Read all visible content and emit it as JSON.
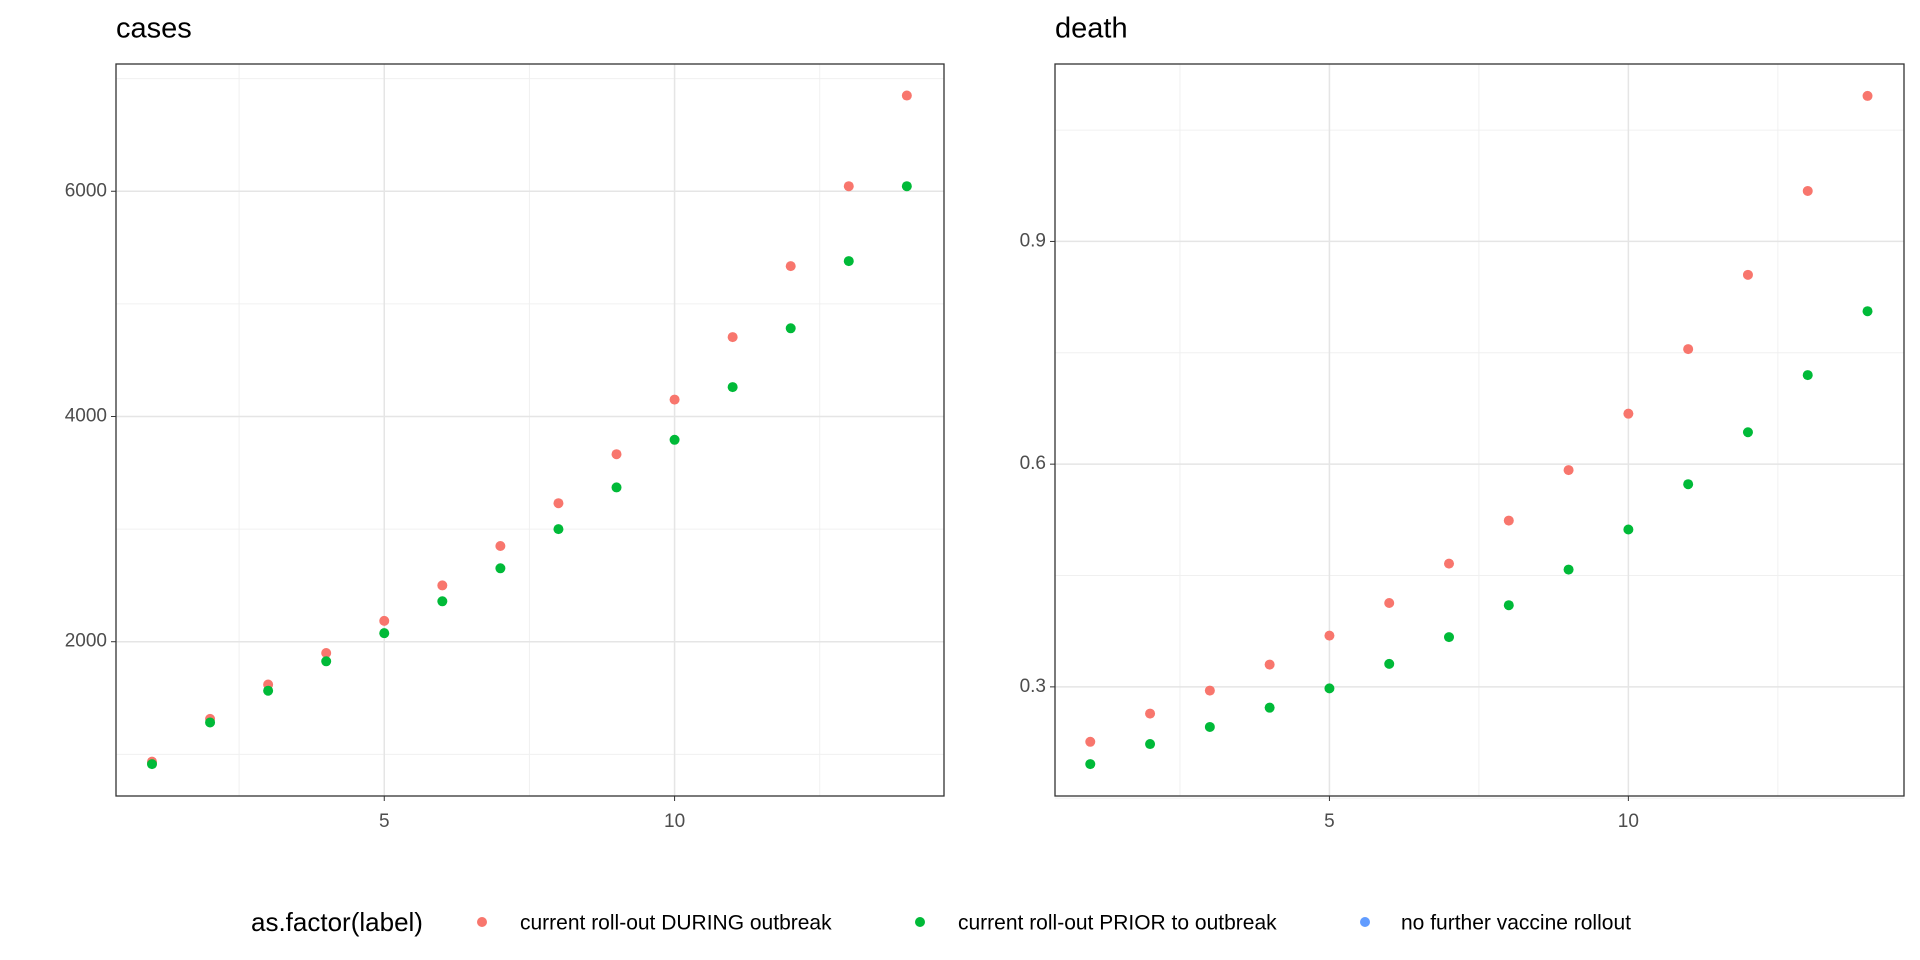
{
  "chart_data": [
    {
      "type": "scatter",
      "title": "cases",
      "x": [
        1,
        2,
        3,
        4,
        5,
        6,
        7,
        8,
        9,
        10,
        11,
        12,
        13,
        14
      ],
      "series": [
        {
          "name": "current roll-out DURING outbreak",
          "color": "#f8766d",
          "values": [
            935,
            1315,
            1620,
            1900,
            2185,
            2500,
            2850,
            3230,
            3665,
            4150,
            4705,
            5335,
            6045,
            6850
          ]
        },
        {
          "name": "current roll-out PRIOR to outbreak",
          "color": "#00ba38",
          "values": [
            913,
            1283,
            1565,
            1826,
            2076,
            2359,
            2652,
            3000,
            3370,
            3793,
            4261,
            4783,
            5380,
            6045
          ]
        },
        {
          "name": "no further vaccine rollout",
          "color": "#619cff",
          "values": [
            null,
            null,
            null,
            null,
            null,
            null,
            null,
            null,
            null,
            null,
            null,
            null,
            null,
            null
          ]
        }
      ],
      "xlim": [
        0.38,
        14.64
      ],
      "xticks": [
        5,
        10
      ],
      "minor_xticks": [
        2.5,
        7.5,
        12.5
      ],
      "ylim": [
        630,
        7130
      ],
      "yticks": [
        2000,
        4000,
        6000
      ],
      "minor_yticks": [
        1000,
        3000,
        5000,
        7000
      ],
      "grid": true
    },
    {
      "type": "scatter",
      "title": "death",
      "x": [
        1,
        2,
        3,
        4,
        5,
        6,
        7,
        8,
        9,
        10,
        11,
        12,
        13,
        14
      ],
      "series": [
        {
          "color": "#f8766d",
          "values": [
            0.226,
            0.264,
            0.295,
            0.33,
            0.369,
            0.413,
            0.466,
            0.524,
            0.592,
            0.668,
            0.755,
            0.855,
            0.968,
            1.096
          ]
        },
        {
          "color": "#00ba38",
          "values": [
            0.196,
            0.223,
            0.246,
            0.272,
            0.298,
            0.331,
            0.367,
            0.41,
            0.458,
            0.512,
            0.573,
            0.643,
            0.72,
            0.806
          ]
        },
        {
          "color": "#619cff",
          "values": [
            null,
            null,
            null,
            null,
            null,
            null,
            null,
            null,
            null,
            null,
            null,
            null,
            null,
            null
          ]
        }
      ],
      "xlim": [
        0.41,
        14.61
      ],
      "xticks": [
        5,
        10
      ],
      "minor_xticks": [
        2.5,
        7.5,
        12.5
      ],
      "ylim": [
        0.153,
        1.139
      ],
      "yticks": [
        0.3,
        0.6,
        0.9
      ],
      "minor_yticks": [
        0.15,
        0.45,
        0.75,
        1.05
      ],
      "grid": true
    }
  ],
  "legend": {
    "title": "as.factor(label)"
  }
}
